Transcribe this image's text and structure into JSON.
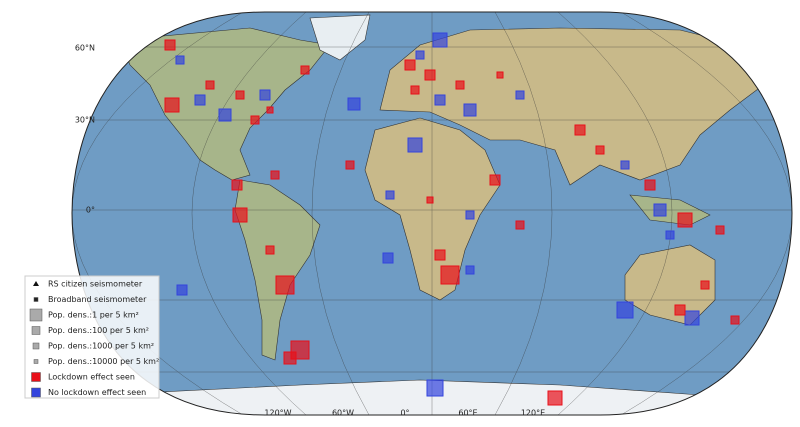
{
  "map": {
    "lat_labels": [
      "60°N",
      "30°N",
      "0°"
    ],
    "lon_labels": [
      "120°W",
      "60°W",
      "0°",
      "60°E",
      "120°E"
    ],
    "legend": [
      "RS citizen seismometer",
      "Broadband seismometer",
      "Pop. dens.:1 per 5 km²",
      "Pop. dens.:100 per 5 km²",
      "Pop. dens.:1000 per 5 km²",
      "Pop. dens.:10000 per 5 km²",
      "Lockdown effect seen",
      "No lockdown effect seen"
    ]
  }
}
